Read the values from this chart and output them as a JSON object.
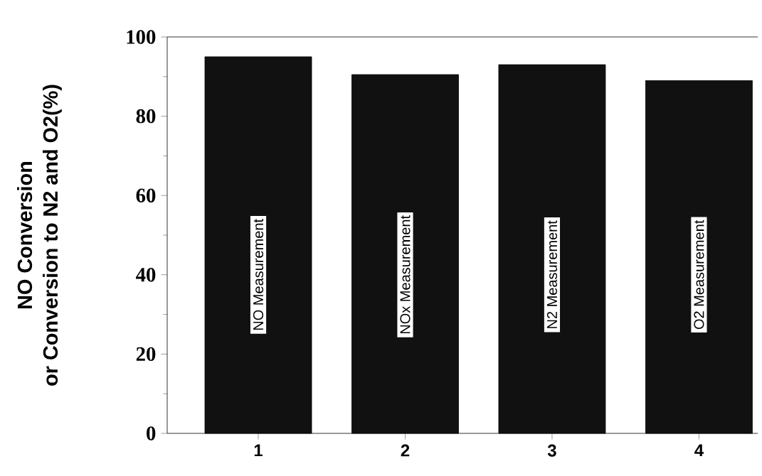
{
  "chart_data": {
    "type": "bar",
    "ylabel": "NO Conversion\nor Conversion to N2 and O2(%)",
    "categories": [
      "1",
      "2",
      "3",
      "4"
    ],
    "values": [
      95,
      90.5,
      93,
      89
    ],
    "color": "#111111",
    "ylim": [
      0,
      100
    ],
    "yticks": [
      0,
      20,
      40,
      60,
      80,
      100
    ],
    "grid": false,
    "annotations": [
      "NO Measurement",
      "NOx Measurement",
      "N2 Measurement",
      "O2 Measurement"
    ]
  }
}
